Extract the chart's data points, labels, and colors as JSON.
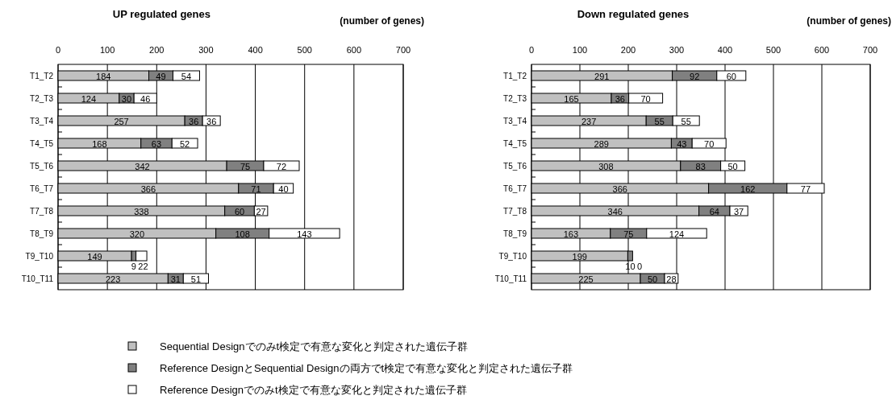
{
  "chart_data": [
    {
      "type": "bar",
      "orientation": "horizontal",
      "stacked": true,
      "title": "UP regulated genes",
      "xlabel": "(number of genes)",
      "categories": [
        "T1_T2",
        "T2_T3",
        "T3_T4",
        "T4_T5",
        "T5_T6",
        "T6_T7",
        "T7_T8",
        "T8_T9",
        "T9_T10",
        "T10_T11"
      ],
      "series": [
        {
          "name": "Sequential Designでのみt検定で有意な変化と判定された遺伝子群",
          "color": "#c0c0c0",
          "values": [
            184,
            124,
            257,
            168,
            342,
            366,
            338,
            320,
            149,
            223
          ]
        },
        {
          "name": "Reference DesignとSequential Designの両方でt検定で有意な変化と判定された遺伝子群",
          "color": "#808080",
          "values": [
            49,
            30,
            36,
            63,
            75,
            71,
            60,
            108,
            9,
            31
          ]
        },
        {
          "name": "Reference Designでのみt検定で有意な変化と判定された遺伝子群",
          "color": "#ffffff",
          "values": [
            54,
            46,
            36,
            52,
            72,
            40,
            27,
            143,
            22,
            51
          ]
        }
      ],
      "xlim": [
        0,
        700
      ],
      "xticks": [
        0,
        100,
        200,
        300,
        400,
        500,
        600,
        700
      ],
      "grid": "x",
      "data_labels": true,
      "legend": "bottom"
    },
    {
      "type": "bar",
      "orientation": "horizontal",
      "stacked": true,
      "title": "Down regulated genes",
      "xlabel": "(number of genes)",
      "categories": [
        "T1_T2",
        "T2_T3",
        "T3_T4",
        "T4_T5",
        "T5_T6",
        "T6_T7",
        "T7_T8",
        "T8_T9",
        "T9_T10",
        "T10_T11"
      ],
      "series": [
        {
          "color": "#c0c0c0",
          "values": [
            291,
            165,
            237,
            289,
            308,
            366,
            346,
            163,
            199,
            225
          ]
        },
        {
          "color": "#808080",
          "values": [
            92,
            36,
            55,
            43,
            83,
            162,
            64,
            75,
            10,
            50
          ]
        },
        {
          "color": "#ffffff",
          "values": [
            60,
            70,
            55,
            70,
            50,
            77,
            37,
            124,
            0,
            28
          ]
        }
      ],
      "xlim": [
        0,
        700
      ],
      "xticks": [
        0,
        100,
        200,
        300,
        400,
        500,
        600,
        700
      ],
      "grid": "x",
      "data_labels": true
    }
  ]
}
